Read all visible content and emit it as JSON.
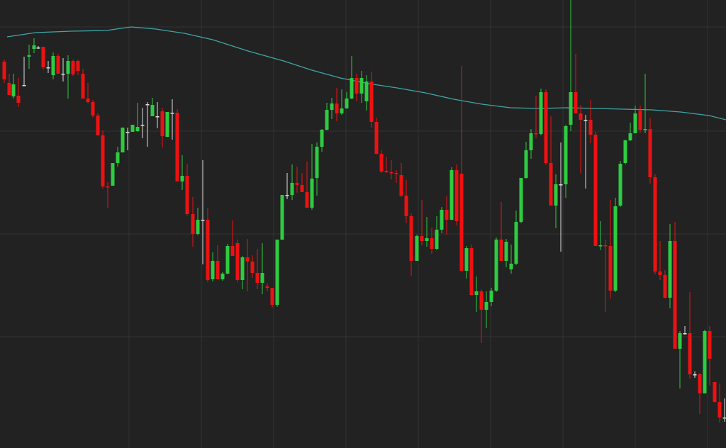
{
  "chart_data": {
    "type": "candlestick",
    "title": "",
    "xlabel": "",
    "ylabel": "",
    "grid": true,
    "legend": "none",
    "ylim": [
      0,
      632
    ],
    "up_color": "#2ecc40",
    "down_color": "#ee1111",
    "doji_color": "#dddddd",
    "ma_color": "#3fa6a6",
    "grid_color": "#333333",
    "background": "#222222",
    "candles": [
      [
        6,
        87,
        84,
        117,
        112
      ],
      [
        13,
        117,
        104,
        134,
        134
      ],
      [
        19,
        136,
        104,
        139,
        119
      ],
      [
        26,
        135,
        110,
        151,
        145
      ],
      [
        34,
        120,
        80,
        121,
        120
      ],
      [
        41,
        80,
        63,
        97,
        78
      ],
      [
        48,
        69,
        54,
        75,
        64
      ],
      [
        54,
        67,
        65,
        69,
        67
      ],
      [
        61,
        66,
        66,
        98,
        95
      ],
      [
        68,
        95,
        86,
        103,
        95
      ],
      [
        75,
        106,
        74,
        112,
        79
      ],
      [
        82,
        79,
        76,
        104,
        104
      ],
      [
        89,
        104,
        82,
        115,
        104
      ],
      [
        96,
        104,
        78,
        139,
        86
      ],
      [
        103,
        86,
        84,
        107,
        105
      ],
      [
        110,
        86,
        84,
        106,
        100
      ],
      [
        117,
        104,
        97,
        139,
        139
      ],
      [
        124,
        139,
        117,
        146,
        144
      ],
      [
        131,
        144,
        141,
        166,
        163
      ],
      [
        138,
        163,
        160,
        191,
        191
      ],
      [
        145,
        191,
        184,
        266,
        263
      ],
      [
        152,
        263,
        257,
        293,
        264
      ],
      [
        159,
        262,
        230,
        262,
        230
      ],
      [
        166,
        230,
        207,
        235,
        215
      ],
      [
        173,
        215,
        181,
        215,
        180
      ],
      [
        180,
        186,
        180,
        212,
        186
      ],
      [
        187,
        186,
        176,
        185,
        176
      ],
      [
        194,
        185,
        145,
        186,
        179
      ],
      [
        201,
        176,
        152,
        195,
        176
      ],
      [
        208,
        147,
        144,
        207,
        147
      ],
      [
        215,
        164,
        138,
        164,
        148
      ],
      [
        222,
        164,
        144,
        181,
        164
      ],
      [
        229,
        157,
        152,
        208,
        192
      ],
      [
        236,
        193,
        158,
        193,
        158
      ],
      [
        243,
        159,
        140,
        197,
        159
      ],
      [
        250,
        159,
        154,
        256,
        256
      ],
      [
        257,
        256,
        219,
        268,
        248
      ],
      [
        264,
        248,
        231,
        304,
        302
      ],
      [
        272,
        302,
        278,
        348,
        330
      ],
      [
        279,
        330,
        293,
        332,
        310
      ],
      [
        286,
        310,
        226,
        373,
        310
      ],
      [
        293,
        310,
        293,
        398,
        395
      ],
      [
        300,
        394,
        356,
        397,
        368
      ],
      [
        307,
        368,
        346,
        394,
        394
      ],
      [
        314,
        394,
        384,
        396,
        386
      ],
      [
        321,
        386,
        344,
        387,
        347
      ],
      [
        328,
        347,
        311,
        361,
        361
      ],
      [
        335,
        343,
        338,
        398,
        395
      ],
      [
        342,
        395,
        361,
        408,
        363
      ],
      [
        349,
        363,
        337,
        411,
        369
      ],
      [
        356,
        369,
        360,
        392,
        385
      ],
      [
        363,
        385,
        351,
        408,
        399
      ],
      [
        370,
        399,
        343,
        415,
        385
      ],
      [
        377,
        404,
        400,
        411,
        406
      ],
      [
        384,
        406,
        406,
        434,
        430
      ],
      [
        391,
        430,
        338,
        433,
        338
      ],
      [
        398,
        338,
        275,
        339,
        275
      ],
      [
        405,
        275,
        244,
        281,
        275
      ],
      [
        412,
        275,
        232,
        282,
        258
      ],
      [
        419,
        258,
        235,
        272,
        261
      ],
      [
        426,
        261,
        244,
        263,
        271
      ],
      [
        433,
        271,
        228,
        272,
        293
      ],
      [
        440,
        293,
        203,
        296,
        252
      ],
      [
        447,
        251,
        201,
        276,
        207
      ],
      [
        454,
        207,
        182,
        214,
        183
      ],
      [
        461,
        183,
        145,
        184,
        155
      ],
      [
        468,
        155,
        138,
        168,
        146
      ],
      [
        475,
        146,
        124,
        171,
        160
      ],
      [
        482,
        160,
        126,
        162,
        153
      ],
      [
        489,
        153,
        130,
        153,
        139
      ],
      [
        496,
        139,
        79,
        140,
        110
      ],
      [
        503,
        110,
        104,
        143,
        132
      ],
      [
        510,
        132,
        100,
        145,
        110
      ],
      [
        517,
        143,
        106,
        156,
        115
      ],
      [
        524,
        115,
        101,
        180,
        172
      ],
      [
        531,
        172,
        166,
        218,
        217
      ],
      [
        538,
        217,
        212,
        244,
        242
      ],
      [
        545,
        241,
        221,
        244,
        243
      ],
      [
        552,
        243,
        226,
        253,
        244
      ],
      [
        559,
        244,
        240,
        258,
        245
      ],
      [
        566,
        247,
        230,
        278,
        276
      ],
      [
        573,
        276,
        254,
        315,
        305
      ],
      [
        580,
        305,
        301,
        389,
        368
      ],
      [
        588,
        368,
        331,
        368,
        333
      ],
      [
        595,
        333,
        282,
        346,
        340
      ],
      [
        602,
        340,
        306,
        348,
        336
      ],
      [
        609,
        336,
        321,
        358,
        351
      ],
      [
        616,
        351,
        305,
        353,
        324
      ],
      [
        623,
        324,
        292,
        329,
        296
      ],
      [
        630,
        296,
        276,
        331,
        310
      ],
      [
        637,
        310,
        236,
        311,
        240
      ],
      [
        644,
        240,
        232,
        318,
        312
      ],
      [
        651,
        245,
        93,
        382,
        382
      ],
      [
        658,
        382,
        347,
        393,
        350
      ],
      [
        665,
        350,
        345,
        416,
        416
      ],
      [
        672,
        416,
        390,
        440,
        411
      ],
      [
        679,
        411,
        408,
        484,
        437
      ],
      [
        686,
        437,
        411,
        463,
        426
      ],
      [
        693,
        426,
        406,
        432,
        410
      ],
      [
        700,
        410,
        335,
        412,
        338
      ],
      [
        707,
        338,
        285,
        364,
        368
      ],
      [
        714,
        368,
        337,
        377,
        341
      ],
      [
        721,
        380,
        345,
        386,
        372
      ],
      [
        728,
        372,
        297,
        374,
        313
      ],
      [
        735,
        313,
        251,
        315,
        251
      ],
      [
        742,
        251,
        200,
        252,
        212
      ],
      [
        749,
        212,
        182,
        224,
        188
      ],
      [
        756,
        188,
        135,
        195,
        189
      ],
      [
        763,
        189,
        125,
        191,
        130
      ],
      [
        770,
        130,
        126,
        233,
        230
      ],
      [
        777,
        230,
        164,
        232,
        290
      ],
      [
        784,
        290,
        246,
        322,
        260
      ],
      [
        791,
        260,
        201,
        355,
        260
      ],
      [
        798,
        260,
        176,
        279,
        178
      ],
      [
        805,
        176,
        0,
        185,
        130
      ],
      [
        812,
        130,
        76,
        133,
        160
      ],
      [
        819,
        160,
        148,
        245,
        169
      ],
      [
        826,
        169,
        162,
        266,
        169
      ],
      [
        833,
        169,
        141,
        202,
        190
      ],
      [
        840,
        190,
        186,
        347,
        347
      ],
      [
        847,
        347,
        312,
        353,
        346
      ],
      [
        854,
        346,
        338,
        440,
        347
      ],
      [
        861,
        347,
        282,
        421,
        410
      ],
      [
        868,
        410,
        279,
        412,
        291
      ],
      [
        875,
        290,
        227,
        292,
        231
      ],
      [
        882,
        230,
        197,
        232,
        198
      ],
      [
        889,
        198,
        173,
        199,
        188
      ],
      [
        896,
        188,
        149,
        188,
        160
      ],
      [
        903,
        156,
        149,
        187,
        183
      ],
      [
        910,
        183,
        104,
        188,
        182
      ],
      [
        917,
        182,
        166,
        259,
        250
      ],
      [
        924,
        250,
        246,
        387,
        383
      ],
      [
        931,
        383,
        340,
        395,
        388
      ],
      [
        938,
        388,
        381,
        421,
        420
      ],
      [
        945,
        420,
        316,
        435,
        340
      ],
      [
        952,
        340,
        313,
        492,
        492
      ],
      [
        959,
        492,
        467,
        548,
        470
      ],
      [
        966,
        470,
        460,
        472,
        470
      ],
      [
        973,
        470,
        412,
        534,
        528
      ],
      [
        980,
        528,
        524,
        533,
        528
      ],
      [
        987,
        528,
        526,
        584,
        555
      ],
      [
        994,
        555,
        465,
        555,
        467
      ],
      [
        1001,
        467,
        460,
        544,
        506
      ],
      [
        1008,
        539,
        539,
        568,
        567
      ],
      [
        1015,
        567,
        541,
        596,
        589
      ],
      [
        1022,
        589,
        562,
        595,
        589
      ]
    ],
    "moving_average": [
      [
        10,
        52
      ],
      [
        50,
        46
      ],
      [
        100,
        44
      ],
      [
        150,
        43
      ],
      [
        185,
        38
      ],
      [
        220,
        41
      ],
      [
        260,
        47
      ],
      [
        300,
        56
      ],
      [
        350,
        72
      ],
      [
        400,
        86
      ],
      [
        440,
        99
      ],
      [
        480,
        110
      ],
      [
        520,
        118
      ],
      [
        560,
        124
      ],
      [
        600,
        131
      ],
      [
        640,
        140
      ],
      [
        680,
        147
      ],
      [
        720,
        152
      ],
      [
        760,
        153
      ],
      [
        800,
        152
      ],
      [
        840,
        153
      ],
      [
        880,
        154
      ],
      [
        920,
        155
      ],
      [
        960,
        158
      ],
      [
        1000,
        163
      ],
      [
        1024,
        169
      ]
    ],
    "x_grid": [
      182,
      284,
      386,
      488,
      590,
      692,
      794,
      896,
      998
    ],
    "y_grid": [
      38,
      185,
      330,
      475
    ]
  }
}
